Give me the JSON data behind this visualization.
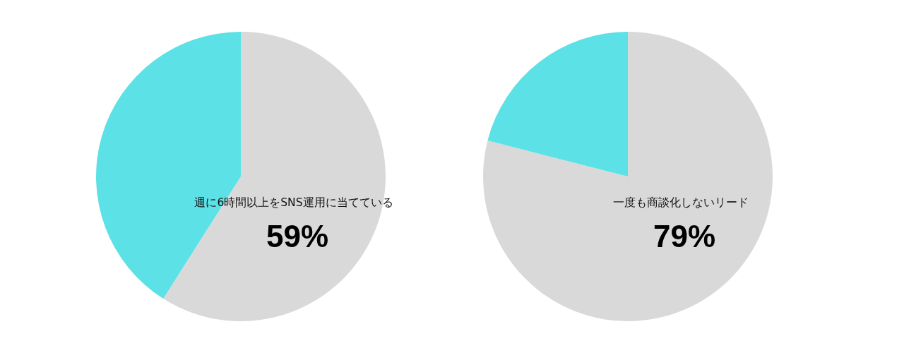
{
  "chart_data": [
    {
      "type": "pie",
      "categories": [
        "週に6時間以上をSNS運用に当てている",
        null
      ],
      "values": [
        59,
        41
      ],
      "colors": [
        "#d9d9d9",
        "#5ce1e6"
      ],
      "value_labels": [
        "59%",
        null
      ]
    },
    {
      "type": "pie",
      "categories": [
        "一度も商談化しないリード",
        null
      ],
      "values": [
        79,
        21
      ],
      "colors": [
        "#d9d9d9",
        "#5ce1e6"
      ],
      "value_labels": [
        "79%",
        null
      ]
    }
  ]
}
